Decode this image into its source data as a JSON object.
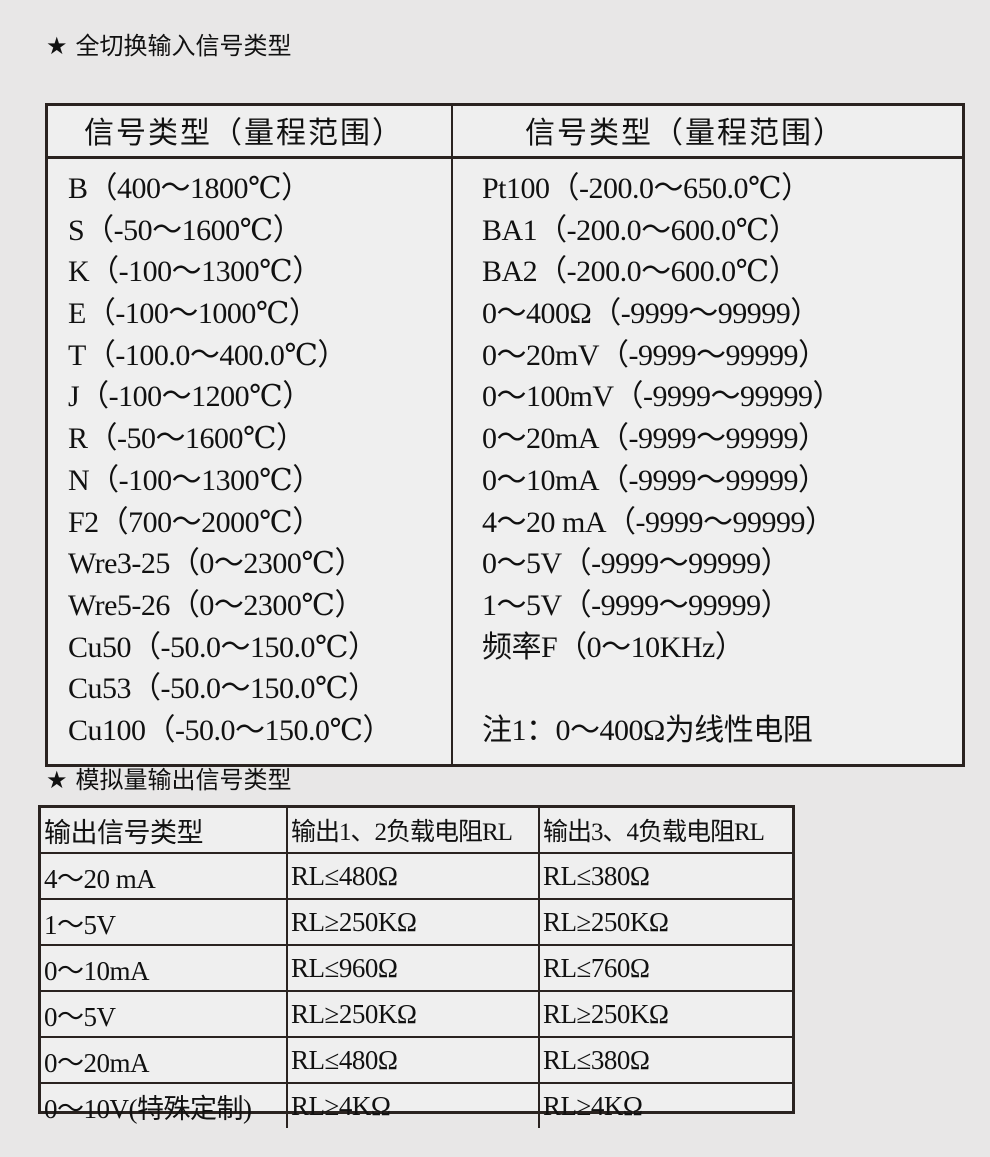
{
  "section1": {
    "title": "全切换输入信号类型",
    "header_left": "信号类型（量程范围）",
    "header_right": "信号类型（量程范围）",
    "left_rows": [
      "B（400～1800℃）",
      "S（-50～1600℃）",
      "K（-100～1300℃）",
      "E（-100～1000℃）",
      "T（-100.0～400.0℃）",
      "J（-100～1200℃）",
      "R（-50～1600℃）",
      "N（-100～1300℃）",
      "F2（700～2000℃）",
      "Wre3-25（0～2300℃）",
      "Wre5-26（0～2300℃）",
      "Cu50（-50.0～150.0℃）",
      "Cu53（-50.0～150.0℃）",
      "Cu100（-50.0～150.0℃）"
    ],
    "right_rows": [
      "Pt100（-200.0～650.0℃）",
      "BA1（-200.0～600.0℃）",
      "BA2（-200.0～600.0℃）",
      "0～400Ω（-9999～99999）",
      "0～20mV（-9999～99999）",
      "0～100mV（-9999～99999）",
      "0～20mA（-9999～99999）",
      "0～10mA（-9999～99999）",
      "4～20 mA（-9999～99999）",
      "0～5V（-9999～99999）",
      "1～5V（-9999～99999）",
      "频率F（0～10KHz）",
      "",
      "注1：0～400Ω为线性电阻"
    ]
  },
  "section2": {
    "title": "模拟量输出信号类型",
    "headers": [
      "输出信号类型",
      "输出1、2负载电阻RL",
      "输出3、4负载电阻RL"
    ],
    "rows": [
      [
        "4～20 mA",
        "RL≤480Ω",
        "RL≤380Ω"
      ],
      [
        "1～5V",
        "RL≥250KΩ",
        "RL≥250KΩ"
      ],
      [
        "0～10mA",
        "RL≤960Ω",
        "RL≤760Ω"
      ],
      [
        "0～5V",
        "RL≥250KΩ",
        "RL≥250KΩ"
      ],
      [
        "0～20mA",
        "RL≤480Ω",
        "RL≤380Ω"
      ],
      [
        "0～10V(特殊定制)",
        "RL≥4KΩ",
        "RL≥4KΩ"
      ]
    ]
  },
  "icons": {
    "bullet": "star-icon"
  }
}
